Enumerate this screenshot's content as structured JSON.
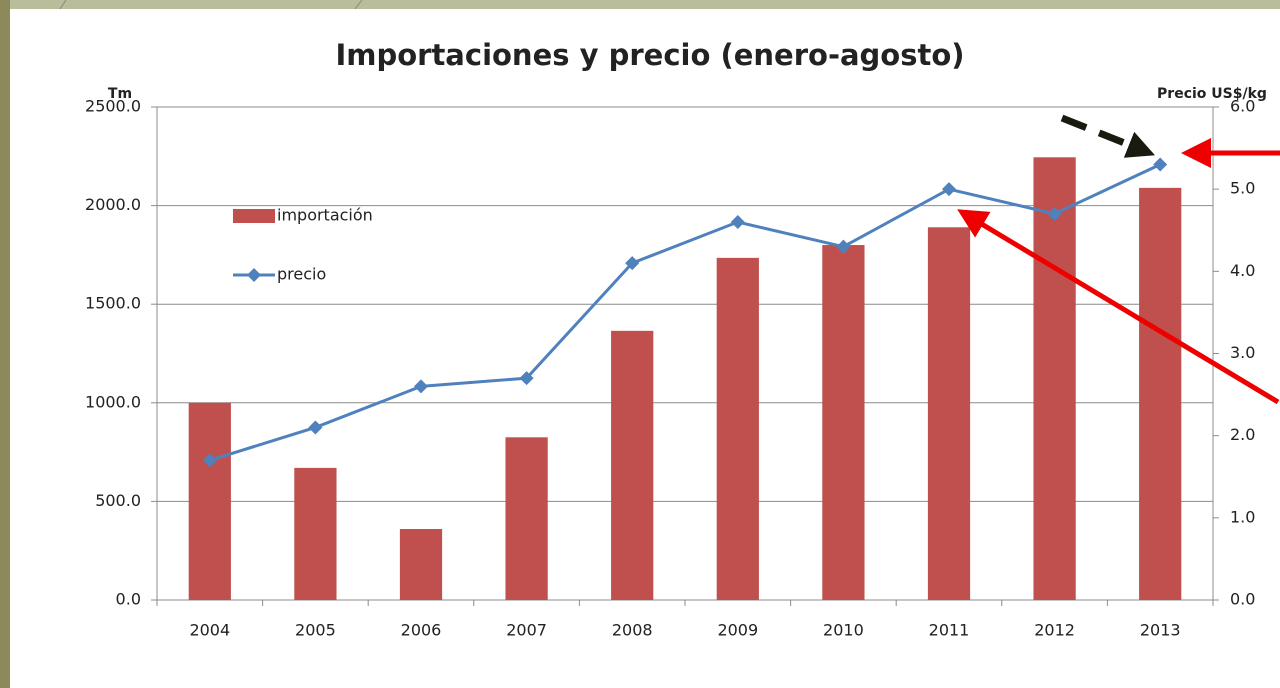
{
  "chart_data": {
    "type": "bar",
    "title": "Importaciones y precio (enero-agosto)",
    "y_label": "Tm",
    "y2_label": "Precio US$/kg",
    "categories": [
      "2004",
      "2005",
      "2006",
      "2007",
      "2008",
      "2009",
      "2010",
      "2011",
      "2012",
      "2013"
    ],
    "series": [
      {
        "name": "importación",
        "type": "bar",
        "color": "#c0504d",
        "values": [
          1000,
          670,
          360,
          825,
          1365,
          1735,
          1800,
          1890,
          2245,
          2090
        ]
      },
      {
        "name": "precio",
        "type": "line",
        "axis": "y2",
        "color": "#4f81bd",
        "values": [
          1.7,
          2.1,
          2.6,
          2.7,
          4.1,
          4.6,
          4.3,
          5.0,
          4.7,
          5.3
        ]
      }
    ],
    "ylim": [
      0,
      2500
    ],
    "yticks": [
      {
        "value": 0,
        "label": "0.0"
      },
      {
        "value": 500,
        "label": "500.0"
      },
      {
        "value": 1000,
        "label": "1000.0"
      },
      {
        "value": 1500,
        "label": "1500.0"
      },
      {
        "value": 2000,
        "label": "2000.0"
      },
      {
        "value": 2500,
        "label": "2500.0"
      }
    ],
    "y2lim": [
      0,
      6
    ],
    "y2ticks": [
      {
        "value": 0,
        "label": "0.0"
      },
      {
        "value": 1,
        "label": "1.0"
      },
      {
        "value": 2,
        "label": "2.0"
      },
      {
        "value": 3,
        "label": "3.0"
      },
      {
        "value": 4,
        "label": "4.0"
      },
      {
        "value": 5,
        "label": "5.0"
      },
      {
        "value": 6,
        "label": "6.0"
      }
    ],
    "grid": true,
    "legend": "left"
  }
}
